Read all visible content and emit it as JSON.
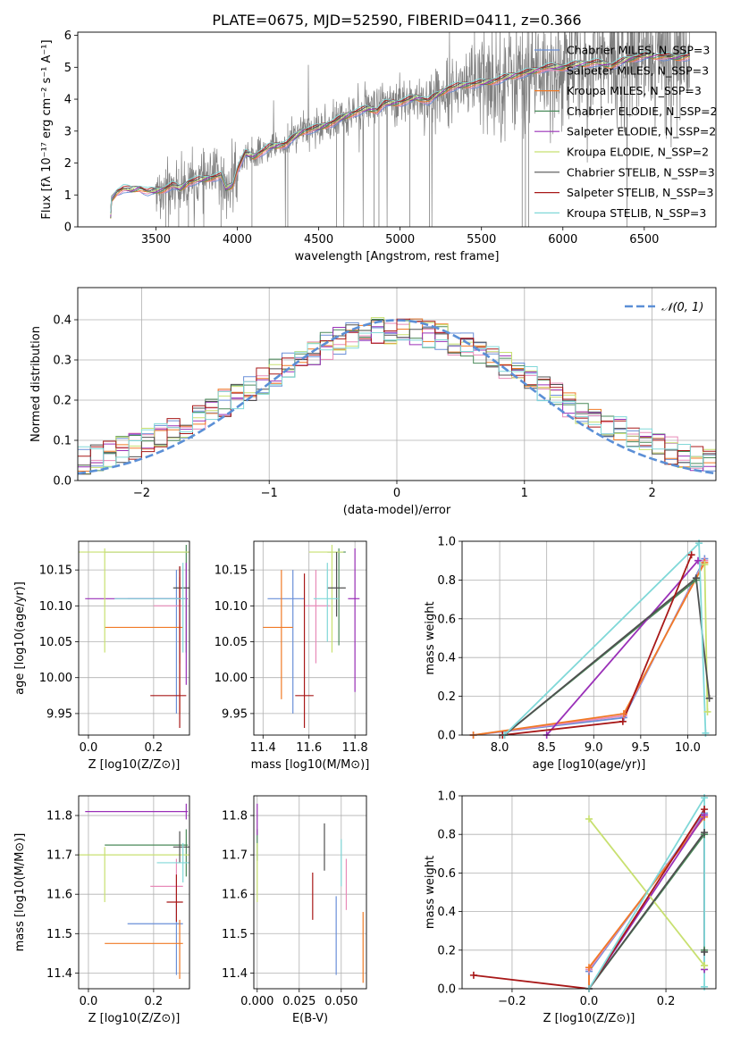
{
  "colors": {
    "chabrier_miles": "#6a8fd8",
    "salpeter_miles": "#e88ab8",
    "kroupa_miles": "#f07a26",
    "chabrier_elodie": "#4a8a5a",
    "salpeter_elodie": "#9a30b8",
    "kroupa_elodie": "#c8e070",
    "chabrier_stelib": "#505050",
    "salpeter_stelib": "#a81818",
    "kroupa_stelib": "#80d8d8",
    "data": "#808080",
    "normal": "#5b8fd6"
  },
  "legend_labels": [
    "Chabrier MILES, N_SSP=3",
    "Salpeter MILES, N_SSP=3",
    "Kroupa MILES, N_SSP=3",
    "Chabrier ELODIE, N_SSP=2",
    "Salpeter ELODIE, N_SSP=2",
    "Kroupa ELODIE, N_SSP=2",
    "Chabrier STELIB, N_SSP=3",
    "Salpeter STELIB, N_SSP=3",
    "Kroupa STELIB, N_SSP=3"
  ],
  "chart_data": [
    {
      "id": "spectrum",
      "type": "line",
      "title": "PLATE=0675, MJD=52590, FIBERID=0411, z=0.366",
      "xlabel": "wavelength [Angstrom, rest frame]",
      "ylabel": "Flux [fλ 10⁻¹⁷ erg cm⁻² s⁻¹ A⁻¹]",
      "xlim": [
        3020,
        6940
      ],
      "ylim": [
        0,
        6.1
      ],
      "xticks": [
        3500,
        4000,
        4500,
        5000,
        5500,
        6000,
        6500
      ],
      "yticks": [
        0,
        1,
        2,
        3,
        4,
        5,
        6
      ],
      "legend": "top-right",
      "model_continuum": [
        [
          3220,
          0
        ],
        [
          3225,
          0.85
        ],
        [
          3260,
          1.1
        ],
        [
          3300,
          1.2
        ],
        [
          3350,
          1.15
        ],
        [
          3400,
          1.22
        ],
        [
          3450,
          1.1
        ],
        [
          3500,
          1.12
        ],
        [
          3550,
          1.18
        ],
        [
          3600,
          1.3
        ],
        [
          3650,
          1.2
        ],
        [
          3700,
          1.4
        ],
        [
          3800,
          1.5
        ],
        [
          3900,
          1.6
        ],
        [
          3930,
          1.2
        ],
        [
          3970,
          1.3
        ],
        [
          4000,
          1.8
        ],
        [
          4050,
          2.3
        ],
        [
          4100,
          2.2
        ],
        [
          4200,
          2.5
        ],
        [
          4300,
          2.6
        ],
        [
          4400,
          3.0
        ],
        [
          4500,
          3.1
        ],
        [
          4600,
          3.3
        ],
        [
          4700,
          3.55
        ],
        [
          4800,
          3.7
        ],
        [
          4860,
          3.65
        ],
        [
          4900,
          3.85
        ],
        [
          5000,
          3.9
        ],
        [
          5100,
          4.05
        ],
        [
          5175,
          3.95
        ],
        [
          5250,
          4.2
        ],
        [
          5300,
          4.35
        ],
        [
          5400,
          4.45
        ],
        [
          5500,
          4.5
        ],
        [
          5600,
          4.6
        ],
        [
          5700,
          4.75
        ],
        [
          5800,
          4.85
        ],
        [
          5900,
          5.0
        ],
        [
          6000,
          5.0
        ],
        [
          6100,
          5.1
        ],
        [
          6200,
          5.15
        ],
        [
          6300,
          5.05
        ],
        [
          6400,
          5.25
        ],
        [
          6500,
          5.35
        ],
        [
          6600,
          5.35
        ],
        [
          6700,
          5.3
        ],
        [
          6780,
          5.35
        ]
      ]
    },
    {
      "id": "residuals",
      "type": "histogram",
      "xlabel": "(data-model)/error",
      "ylabel": "Normed distribution",
      "xlim": [
        -2.5,
        2.5
      ],
      "ylim": [
        0,
        0.48
      ],
      "xticks": [
        -2,
        -1,
        0,
        1,
        2
      ],
      "yticks": [
        0.0,
        0.1,
        0.2,
        0.3,
        0.4
      ],
      "legend_label": "𝒩(0, 1)",
      "legend": "top-right",
      "bin_width": 0.1
    },
    {
      "id": "age-vs-z",
      "type": "errorbar",
      "xlabel": "Z [log10(Z/Z⊙)]",
      "ylabel": "age  [log10(age/yr)]",
      "xlim": [
        -0.03,
        0.31
      ],
      "ylim": [
        9.92,
        10.19
      ],
      "xticks": [
        0.0,
        0.2
      ],
      "yticks": [
        9.95,
        10.0,
        10.05,
        10.1,
        10.15
      ],
      "points": [
        {
          "model": "chabrier_miles",
          "x": 0.27,
          "xerr": [
            0.15,
            0.02
          ],
          "y": 10.11,
          "yerr": [
            0.16,
            0.04
          ]
        },
        {
          "model": "salpeter_miles",
          "x": 0.28,
          "xerr": [
            0.08,
            0.01
          ],
          "y": 10.1,
          "yerr": [
            0.08,
            0.05
          ]
        },
        {
          "model": "kroupa_miles",
          "x": 0.28,
          "xerr": [
            0.23,
            0.01
          ],
          "y": 10.07,
          "yerr": [
            0.12,
            0.07
          ]
        },
        {
          "model": "chabrier_elodie",
          "x": 0.3,
          "xerr": [
            0.25,
            0.01
          ],
          "y": 10.175,
          "yerr": [
            0.14,
            0.01
          ]
        },
        {
          "model": "salpeter_elodie",
          "x": 0.3,
          "xerr": [
            0.31,
            0.005
          ],
          "y": 10.11,
          "yerr": [
            0.12,
            0.05
          ]
        },
        {
          "model": "kroupa_elodie",
          "x": 0.05,
          "xerr": [
            0.1,
            0.26
          ],
          "y": 10.175,
          "yerr": [
            0.14,
            0.005
          ]
        },
        {
          "model": "chabrier_stelib",
          "x": 0.28,
          "xerr": [
            0.02,
            0.03
          ],
          "y": 10.125,
          "yerr": [
            0.02,
            0.03
          ]
        },
        {
          "model": "salpeter_stelib",
          "x": 0.28,
          "xerr": [
            0.09,
            0.02
          ],
          "y": 9.975,
          "yerr": [
            0.045,
            0.18
          ]
        },
        {
          "model": "kroupa_stelib",
          "x": 0.29,
          "xerr": [
            0.21,
            0.01
          ],
          "y": 10.11,
          "yerr": [
            0.075,
            0.05
          ]
        }
      ]
    },
    {
      "id": "age-vs-mass",
      "type": "errorbar",
      "xlabel": "mass [log10(M/M⊙)]",
      "ylabel": "",
      "xlim": [
        11.36,
        11.85
      ],
      "ylim": [
        9.92,
        10.19
      ],
      "xticks": [
        11.4,
        11.6,
        11.8
      ],
      "yticks": [
        9.95,
        10.0,
        10.05,
        10.1,
        10.15
      ],
      "points": [
        {
          "model": "chabrier_miles",
          "x": 11.53,
          "xerr": [
            0.11,
            0.05
          ],
          "y": 10.11,
          "yerr": [
            0.16,
            0.04
          ]
        },
        {
          "model": "salpeter_miles",
          "x": 11.63,
          "xerr": [
            0.05,
            0.06
          ],
          "y": 10.1,
          "yerr": [
            0.08,
            0.05
          ]
        },
        {
          "model": "kroupa_miles",
          "x": 11.48,
          "xerr": [
            0.08,
            0.05
          ],
          "y": 10.07,
          "yerr": [
            0.1,
            0.08
          ]
        },
        {
          "model": "chabrier_elodie",
          "x": 11.73,
          "xerr": [
            0.05,
            0.03
          ],
          "y": 10.175,
          "yerr": [
            0.13,
            0.005
          ]
        },
        {
          "model": "salpeter_elodie",
          "x": 11.8,
          "xerr": [
            0.03,
            0.02
          ],
          "y": 10.11,
          "yerr": [
            0.13,
            0.07
          ]
        },
        {
          "model": "kroupa_elodie",
          "x": 11.7,
          "xerr": [
            0.1,
            0.05
          ],
          "y": 10.175,
          "yerr": [
            0.14,
            0.01
          ]
        },
        {
          "model": "chabrier_stelib",
          "x": 11.72,
          "xerr": [
            0.04,
            0.04
          ],
          "y": 10.125,
          "yerr": [
            0.04,
            0.05
          ]
        },
        {
          "model": "salpeter_stelib",
          "x": 11.58,
          "xerr": [
            0.04,
            0.04
          ],
          "y": 9.975,
          "yerr": [
            0.045,
            0.17
          ]
        },
        {
          "model": "kroupa_stelib",
          "x": 11.68,
          "xerr": [
            0.06,
            0.05
          ],
          "y": 10.11,
          "yerr": [
            0.06,
            0.05
          ]
        }
      ]
    },
    {
      "id": "mass-weight-vs-age",
      "type": "line",
      "xlabel": "age  [log10(age/yr)]",
      "ylabel": "mass weight",
      "xlim": [
        7.6,
        10.3
      ],
      "ylim": [
        0,
        1.0
      ],
      "xticks": [
        8.0,
        8.5,
        9.0,
        9.5,
        10.0
      ],
      "yticks": [
        0.0,
        0.2,
        0.4,
        0.6,
        0.8,
        1.0
      ],
      "series": [
        {
          "model": "chabrier_miles",
          "x": [
            7.72,
            9.32,
            10.18
          ],
          "y": [
            0.0,
            0.09,
            0.91
          ]
        },
        {
          "model": "salpeter_miles",
          "x": [
            7.72,
            9.32,
            10.18
          ],
          "y": [
            0.0,
            0.1,
            0.9
          ]
        },
        {
          "model": "kroupa_miles",
          "x": [
            7.72,
            9.32,
            10.18
          ],
          "y": [
            0.0,
            0.11,
            0.89
          ]
        },
        {
          "model": "chabrier_elodie",
          "x": [
            8.05,
            10.09
          ],
          "y": [
            0.0,
            0.8
          ]
        },
        {
          "model": "salpeter_elodie",
          "x": [
            8.5,
            10.11
          ],
          "y": [
            0.0,
            0.9
          ]
        },
        {
          "model": "kroupa_elodie",
          "x": [
            10.18,
            10.21
          ],
          "y": [
            0.88,
            0.12
          ]
        },
        {
          "model": "chabrier_stelib",
          "x": [
            8.05,
            10.09,
            10.23
          ],
          "y": [
            0.0,
            0.81,
            0.19
          ]
        },
        {
          "model": "salpeter_stelib",
          "x": [
            8.03,
            9.31,
            10.04
          ],
          "y": [
            0.0,
            0.07,
            0.93
          ]
        },
        {
          "model": "kroupa_stelib",
          "x": [
            8.05,
            10.12,
            10.19
          ],
          "y": [
            0.0,
            0.99,
            0.01
          ]
        }
      ]
    },
    {
      "id": "mass-vs-z",
      "type": "errorbar",
      "xlabel": "Z [log10(Z/Z⊙)]",
      "ylabel": "mass [log10(M/M⊙)]",
      "xlim": [
        -0.03,
        0.31
      ],
      "ylim": [
        11.36,
        11.85
      ],
      "xticks": [
        0.0,
        0.2
      ],
      "yticks": [
        11.4,
        11.5,
        11.6,
        11.7,
        11.8
      ],
      "points": [
        {
          "model": "chabrier_miles",
          "x": 0.27,
          "xerr": [
            0.15,
            0.02
          ],
          "y": 11.525,
          "yerr": [
            0.13,
            0.05
          ]
        },
        {
          "model": "salpeter_miles",
          "x": 0.27,
          "xerr": [
            0.08,
            0.02
          ],
          "y": 11.62,
          "yerr": [
            0.05,
            0.07
          ]
        },
        {
          "model": "kroupa_miles",
          "x": 0.28,
          "xerr": [
            0.23,
            0.01
          ],
          "y": 11.475,
          "yerr": [
            0.09,
            0.06
          ]
        },
        {
          "model": "chabrier_elodie",
          "x": 0.3,
          "xerr": [
            0.25,
            0.005
          ],
          "y": 11.725,
          "yerr": [
            0.08,
            0.04
          ]
        },
        {
          "model": "salpeter_elodie",
          "x": 0.3,
          "xerr": [
            0.31,
            0.005
          ],
          "y": 11.81,
          "yerr": [
            0.02,
            0.02
          ]
        },
        {
          "model": "kroupa_elodie",
          "x": 0.05,
          "xerr": [
            0.1,
            0.26
          ],
          "y": 11.7,
          "yerr": [
            0.12,
            0.02
          ]
        },
        {
          "model": "chabrier_stelib",
          "x": 0.28,
          "xerr": [
            0.02,
            0.03
          ],
          "y": 11.72,
          "yerr": [
            0.04,
            0.04
          ]
        },
        {
          "model": "salpeter_stelib",
          "x": 0.27,
          "xerr": [
            0.03,
            0.02
          ],
          "y": 11.58,
          "yerr": [
            0.05,
            0.07
          ]
        },
        {
          "model": "kroupa_stelib",
          "x": 0.29,
          "xerr": [
            0.08,
            0.02
          ],
          "y": 11.68,
          "yerr": [
            0.05,
            0.05
          ]
        }
      ]
    },
    {
      "id": "mass-vs-ebv",
      "type": "errorbar",
      "xlabel": "E(B-V)",
      "ylabel": "",
      "xlim": [
        -0.002,
        0.065
      ],
      "ylim": [
        11.36,
        11.85
      ],
      "xticks": [
        0.0,
        0.025,
        0.05
      ],
      "yticks": [
        11.4,
        11.5,
        11.6,
        11.7,
        11.8
      ],
      "points": [
        {
          "model": "chabrier_miles",
          "x": 0.047,
          "y": 11.525,
          "yerr": [
            0.13,
            0.07
          ]
        },
        {
          "model": "salpeter_miles",
          "x": 0.053,
          "y": 11.62,
          "yerr": [
            0.06,
            0.07
          ]
        },
        {
          "model": "kroupa_miles",
          "x": 0.063,
          "y": 11.475,
          "yerr": [
            0.1,
            0.08
          ]
        },
        {
          "model": "chabrier_elodie",
          "x": 0.0,
          "y": 11.725,
          "yerr": [
            0.04,
            0.04
          ]
        },
        {
          "model": "salpeter_elodie",
          "x": 0.0,
          "y": 11.81,
          "yerr": [
            0.06,
            0.02
          ]
        },
        {
          "model": "kroupa_elodie",
          "x": 0.0,
          "y": 11.7,
          "yerr": [
            0.12,
            0.03
          ]
        },
        {
          "model": "chabrier_stelib",
          "x": 0.04,
          "y": 11.72,
          "yerr": [
            0.06,
            0.06
          ]
        },
        {
          "model": "salpeter_stelib",
          "x": 0.033,
          "y": 11.595,
          "yerr": [
            0.06,
            0.06
          ]
        },
        {
          "model": "kroupa_stelib",
          "x": 0.05,
          "y": 11.68,
          "yerr": [
            0.06,
            0.06
          ]
        }
      ]
    },
    {
      "id": "mass-weight-vs-z",
      "type": "line",
      "xlabel": "Z [log10(Z/Z⊙)]",
      "ylabel": "mass weight",
      "xlim": [
        -0.33,
        0.33
      ],
      "ylim": [
        0,
        1.0
      ],
      "xticks": [
        -0.2,
        0.0,
        0.2
      ],
      "yticks": [
        0.0,
        0.2,
        0.4,
        0.6,
        0.8,
        1.0
      ],
      "series": [
        {
          "model": "chabrier_miles",
          "x": [
            0.0,
            0.0,
            0.3
          ],
          "y": [
            0.0,
            0.09,
            0.91
          ]
        },
        {
          "model": "salpeter_miles",
          "x": [
            0.0,
            0.0,
            0.3
          ],
          "y": [
            0.0,
            0.1,
            0.9
          ]
        },
        {
          "model": "kroupa_miles",
          "x": [
            0.0,
            0.0,
            0.3
          ],
          "y": [
            0.0,
            0.11,
            0.89
          ]
        },
        {
          "model": "chabrier_elodie",
          "x": [
            0.0,
            0.3,
            0.3
          ],
          "y": [
            0.0,
            0.8,
            0.2
          ]
        },
        {
          "model": "salpeter_elodie",
          "x": [
            0.0,
            0.3,
            0.3
          ],
          "y": [
            0.0,
            0.9,
            0.1
          ]
        },
        {
          "model": "kroupa_elodie",
          "x": [
            0.0,
            0.3,
            0.3
          ],
          "y": [
            0.88,
            0.12,
            0.12
          ]
        },
        {
          "model": "chabrier_stelib",
          "x": [
            0.0,
            0.3,
            0.3
          ],
          "y": [
            0.0,
            0.81,
            0.19
          ]
        },
        {
          "model": "salpeter_stelib",
          "x": [
            -0.3,
            0.0,
            0.3
          ],
          "y": [
            0.07,
            0.0,
            0.93
          ]
        },
        {
          "model": "kroupa_stelib",
          "x": [
            0.0,
            0.3,
            0.3
          ],
          "y": [
            0.0,
            0.99,
            0.01
          ]
        }
      ]
    }
  ]
}
